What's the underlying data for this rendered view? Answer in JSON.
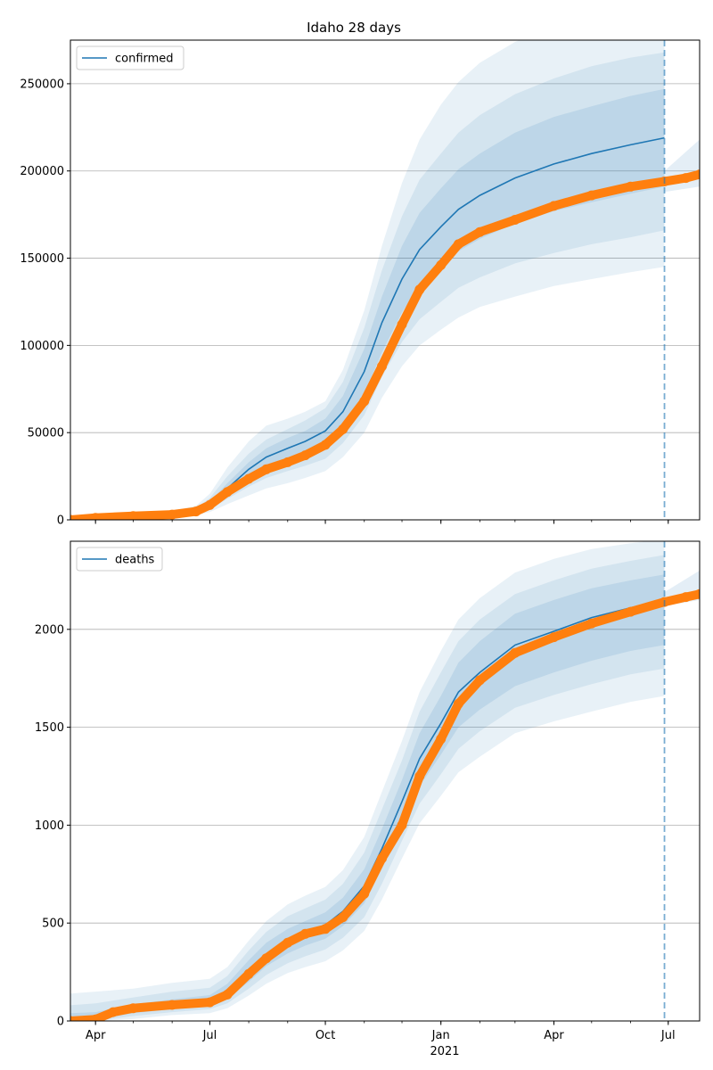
{
  "figure": {
    "title": "Idaho 28 days"
  },
  "colors": {
    "model": "#1f77b4",
    "observed": "#ff7f0e",
    "grid": "#b0b0b0"
  },
  "x_axis": {
    "domain": [
      "2020-03-12",
      "2021-07-26"
    ],
    "ticks": [
      {
        "date": "2020-04-01",
        "label": "Apr"
      },
      {
        "date": "2020-07-01",
        "label": "Jul"
      },
      {
        "date": "2020-10-01",
        "label": "Oct"
      },
      {
        "date": "2021-01-01",
        "label": "Jan"
      },
      {
        "date": "2021-04-01",
        "label": "Apr"
      },
      {
        "date": "2021-07-01",
        "label": "Jul"
      }
    ],
    "year_label": "2021",
    "forecast_start": "2021-06-28"
  },
  "chart_data": [
    {
      "type": "line",
      "panel": "confirmed",
      "title": "Idaho 28 days",
      "legend": {
        "label": "confirmed",
        "placement": "top-left"
      },
      "grid": true,
      "ylim": [
        0,
        275000
      ],
      "yticks": [
        0,
        50000,
        100000,
        150000,
        200000,
        250000
      ],
      "ytick_labels": [
        "0",
        "50000",
        "100000",
        "150000",
        "200000",
        "250000"
      ],
      "model": {
        "x": [
          "2020-03-12",
          "2020-04-01",
          "2020-05-01",
          "2020-06-01",
          "2020-06-20",
          "2020-07-01",
          "2020-07-15",
          "2020-08-01",
          "2020-08-15",
          "2020-09-01",
          "2020-09-15",
          "2020-10-01",
          "2020-10-15",
          "2020-11-01",
          "2020-11-15",
          "2020-12-01",
          "2020-12-15",
          "2021-01-01",
          "2021-01-15",
          "2021-02-01",
          "2021-03-01",
          "2021-04-01",
          "2021-05-01",
          "2021-06-01",
          "2021-06-28"
        ],
        "y": [
          0,
          300,
          1500,
          3000,
          5000,
          9000,
          18000,
          29000,
          36000,
          41000,
          45000,
          51000,
          62000,
          85000,
          113000,
          138000,
          155000,
          168000,
          178000,
          186000,
          196000,
          204000,
          210000,
          215000,
          219000
        ],
        "band50": [
          [
            0,
            0
          ],
          [
            200,
            400
          ],
          [
            1200,
            1800
          ],
          [
            2500,
            3500
          ],
          [
            4200,
            5800
          ],
          [
            7500,
            10500
          ],
          [
            15000,
            21000
          ],
          [
            24000,
            33000
          ],
          [
            30000,
            41000
          ],
          [
            34500,
            47000
          ],
          [
            38000,
            51000
          ],
          [
            43000,
            58000
          ],
          [
            53000,
            71000
          ],
          [
            72000,
            98000
          ],
          [
            96000,
            128000
          ],
          [
            119000,
            157000
          ],
          [
            134000,
            176000
          ],
          [
            145000,
            190000
          ],
          [
            154000,
            201000
          ],
          [
            161000,
            210000
          ],
          [
            170000,
            222000
          ],
          [
            177000,
            231000
          ],
          [
            182000,
            237000
          ],
          [
            187000,
            243000
          ],
          [
            191000,
            247000
          ]
        ],
        "band80": [
          [
            0,
            0
          ],
          [
            150,
            500
          ],
          [
            900,
            2200
          ],
          [
            2000,
            4200
          ],
          [
            3500,
            6800
          ],
          [
            6000,
            12500
          ],
          [
            12000,
            25000
          ],
          [
            19000,
            38000
          ],
          [
            24000,
            46000
          ],
          [
            28000,
            52000
          ],
          [
            31000,
            57000
          ],
          [
            35000,
            64000
          ],
          [
            44000,
            79000
          ],
          [
            60000,
            110000
          ],
          [
            82000,
            143000
          ],
          [
            102000,
            174000
          ],
          [
            115000,
            195000
          ],
          [
            125000,
            210000
          ],
          [
            133000,
            222000
          ],
          [
            139000,
            232000
          ],
          [
            147000,
            244000
          ],
          [
            153000,
            253000
          ],
          [
            158000,
            260000
          ],
          [
            162000,
            265000
          ],
          [
            166000,
            268000
          ]
        ],
        "band95": [
          [
            0,
            0
          ],
          [
            100,
            600
          ],
          [
            700,
            2600
          ],
          [
            1500,
            5000
          ],
          [
            2800,
            8000
          ],
          [
            4500,
            15000
          ],
          [
            9000,
            30000
          ],
          [
            14000,
            45000
          ],
          [
            18000,
            54000
          ],
          [
            21000,
            58000
          ],
          [
            24000,
            62000
          ],
          [
            28000,
            68000
          ],
          [
            36000,
            86000
          ],
          [
            50000,
            120000
          ],
          [
            70000,
            157000
          ],
          [
            88000,
            193000
          ],
          [
            100000,
            218000
          ],
          [
            109000,
            238000
          ],
          [
            116000,
            251000
          ],
          [
            122000,
            262000
          ],
          [
            128000,
            274000
          ],
          [
            134000,
            283000
          ],
          [
            138000,
            290000
          ],
          [
            142000,
            296000
          ],
          [
            145000,
            300000
          ]
        ]
      },
      "observed": {
        "name": "observed",
        "x": [
          "2020-03-12",
          "2020-04-01",
          "2020-05-01",
          "2020-06-01",
          "2020-06-20",
          "2020-07-01",
          "2020-07-15",
          "2020-08-01",
          "2020-08-15",
          "2020-09-01",
          "2020-09-15",
          "2020-10-01",
          "2020-10-15",
          "2020-11-01",
          "2020-11-15",
          "2020-12-01",
          "2020-12-15",
          "2021-01-01",
          "2021-01-15",
          "2021-02-01",
          "2021-03-01",
          "2021-04-01",
          "2021-05-01",
          "2021-06-01",
          "2021-06-28",
          "2021-07-15",
          "2021-07-26"
        ],
        "y": [
          0,
          1200,
          2200,
          3000,
          4800,
          8500,
          16000,
          23500,
          29000,
          33000,
          37000,
          43000,
          52000,
          68000,
          88000,
          112000,
          132000,
          146000,
          158000,
          165000,
          172000,
          180000,
          186000,
          191000,
          194000,
          196000,
          198000
        ]
      },
      "extension_band": {
        "x": [
          "2021-06-28",
          "2021-07-26"
        ],
        "lower": [
          188000,
          191000
        ],
        "upper": [
          200000,
          218000
        ]
      }
    },
    {
      "type": "line",
      "panel": "deaths",
      "legend": {
        "label": "deaths",
        "placement": "top-left"
      },
      "grid": true,
      "ylim": [
        0,
        2450
      ],
      "yticks": [
        0,
        500,
        1000,
        1500,
        2000
      ],
      "ytick_labels": [
        "0",
        "500",
        "1000",
        "1500",
        "2000"
      ],
      "model": {
        "x": [
          "2020-03-12",
          "2020-04-01",
          "2020-05-01",
          "2020-06-01",
          "2020-07-01",
          "2020-07-15",
          "2020-08-01",
          "2020-08-15",
          "2020-09-01",
          "2020-09-15",
          "2020-10-01",
          "2020-10-15",
          "2020-11-01",
          "2020-11-15",
          "2020-12-01",
          "2020-12-15",
          "2021-01-01",
          "2021-01-15",
          "2021-02-01",
          "2021-03-01",
          "2021-04-01",
          "2021-05-01",
          "2021-06-01",
          "2021-06-28"
        ],
        "y": [
          5,
          12,
          55,
          80,
          100,
          150,
          250,
          340,
          410,
          450,
          490,
          560,
          690,
          880,
          1120,
          1340,
          1520,
          1680,
          1780,
          1920,
          1990,
          2060,
          2110,
          2150
        ],
        "band50": [
          [
            0,
            40
          ],
          [
            5,
            45
          ],
          [
            40,
            85
          ],
          [
            60,
            110
          ],
          [
            78,
            132
          ],
          [
            115,
            190
          ],
          [
            200,
            310
          ],
          [
            280,
            400
          ],
          [
            345,
            470
          ],
          [
            385,
            510
          ],
          [
            420,
            555
          ],
          [
            485,
            630
          ],
          [
            600,
            775
          ],
          [
            780,
            980
          ],
          [
            1000,
            1230
          ],
          [
            1200,
            1470
          ],
          [
            1360,
            1660
          ],
          [
            1500,
            1830
          ],
          [
            1590,
            1940
          ],
          [
            1710,
            2080
          ],
          [
            1780,
            2150
          ],
          [
            1840,
            2210
          ],
          [
            1890,
            2250
          ],
          [
            1920,
            2280
          ]
        ],
        "band80": [
          [
            0,
            80
          ],
          [
            0,
            90
          ],
          [
            25,
            120
          ],
          [
            45,
            150
          ],
          [
            60,
            170
          ],
          [
            90,
            230
          ],
          [
            165,
            360
          ],
          [
            235,
            455
          ],
          [
            295,
            535
          ],
          [
            330,
            575
          ],
          [
            365,
            620
          ],
          [
            425,
            700
          ],
          [
            530,
            860
          ],
          [
            700,
            1080
          ],
          [
            920,
            1330
          ],
          [
            1110,
            1580
          ],
          [
            1260,
            1780
          ],
          [
            1390,
            1940
          ],
          [
            1480,
            2050
          ],
          [
            1600,
            2180
          ],
          [
            1665,
            2250
          ],
          [
            1720,
            2310
          ],
          [
            1770,
            2350
          ],
          [
            1800,
            2380
          ]
        ],
        "band95": [
          [
            0,
            140
          ],
          [
            0,
            150
          ],
          [
            10,
            165
          ],
          [
            30,
            195
          ],
          [
            40,
            215
          ],
          [
            65,
            275
          ],
          [
            130,
            410
          ],
          [
            190,
            510
          ],
          [
            245,
            595
          ],
          [
            275,
            640
          ],
          [
            305,
            685
          ],
          [
            360,
            770
          ],
          [
            460,
            940
          ],
          [
            620,
            1170
          ],
          [
            830,
            1430
          ],
          [
            1010,
            1680
          ],
          [
            1150,
            1890
          ],
          [
            1270,
            2050
          ],
          [
            1350,
            2160
          ],
          [
            1470,
            2290
          ],
          [
            1530,
            2360
          ],
          [
            1580,
            2410
          ],
          [
            1630,
            2440
          ],
          [
            1660,
            2460
          ]
        ]
      },
      "observed": {
        "name": "observed",
        "x": [
          "2020-03-12",
          "2020-04-01",
          "2020-04-15",
          "2020-05-01",
          "2020-06-01",
          "2020-07-01",
          "2020-07-15",
          "2020-08-01",
          "2020-08-15",
          "2020-09-01",
          "2020-09-15",
          "2020-10-01",
          "2020-10-15",
          "2020-11-01",
          "2020-11-15",
          "2020-12-01",
          "2020-12-15",
          "2021-01-01",
          "2021-01-15",
          "2021-02-01",
          "2021-03-01",
          "2021-04-01",
          "2021-05-01",
          "2021-06-01",
          "2021-06-28",
          "2021-07-15",
          "2021-07-26"
        ],
        "y": [
          0,
          8,
          45,
          65,
          82,
          95,
          135,
          240,
          320,
          400,
          445,
          470,
          530,
          650,
          830,
          1000,
          1250,
          1440,
          1620,
          1740,
          1880,
          1960,
          2030,
          2090,
          2140,
          2165,
          2180
        ]
      },
      "extension_band": {
        "x": [
          "2021-06-28",
          "2021-07-26"
        ],
        "lower": [
          2120,
          2150
        ],
        "upper": [
          2190,
          2300
        ]
      }
    }
  ]
}
